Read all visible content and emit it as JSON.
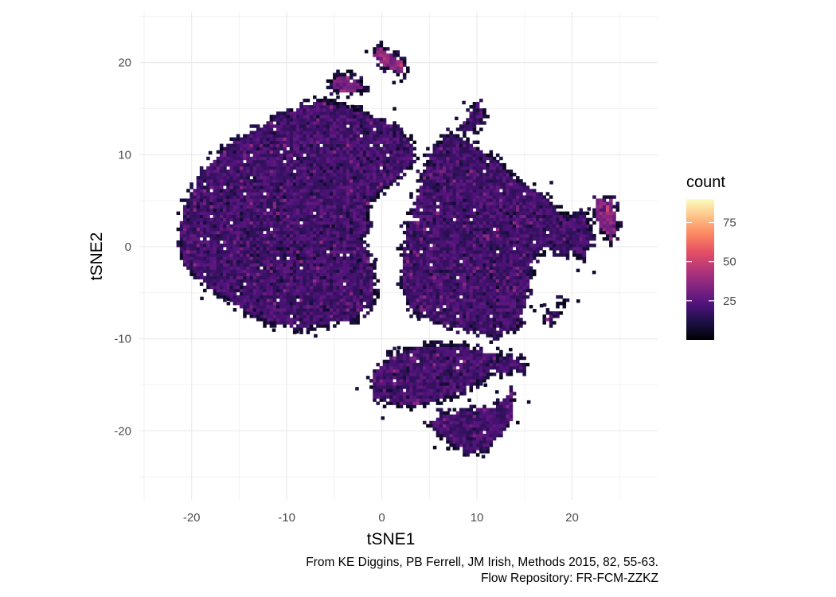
{
  "chart_data": {
    "type": "heatmap",
    "xlabel": "tSNE1",
    "ylabel": "tSNE2",
    "xlim": [
      -25.5,
      29
    ],
    "ylim": [
      -27.5,
      25.5
    ],
    "x_ticks": [
      -20,
      -10,
      0,
      10,
      20
    ],
    "y_ticks": [
      -20,
      -10,
      0,
      10,
      20
    ],
    "grid": true,
    "legend": {
      "title": "count",
      "position": "right",
      "labels": [
        25,
        50,
        75
      ],
      "range": [
        0,
        90
      ],
      "colors": [
        "#000004",
        "#1c1044",
        "#4f127b",
        "#812581",
        "#b5367a",
        "#e55064",
        "#fb8761",
        "#fec287",
        "#fcfdbf"
      ]
    },
    "clusters": [
      {
        "name": "large-left-cluster",
        "x": -9,
        "y": 3,
        "density": "medium"
      },
      {
        "name": "large-right-cluster",
        "x": 9,
        "y": 1,
        "density": "medium"
      },
      {
        "name": "lower-middle-cluster",
        "x": 5,
        "y": -14,
        "density": "medium"
      },
      {
        "name": "bottom-cluster",
        "x": 10,
        "y": -20,
        "density": "medium"
      },
      {
        "name": "small-top-cluster",
        "x": 0.5,
        "y": 20,
        "density": "high"
      },
      {
        "name": "small-upper-left-cluster",
        "x": -4,
        "y": 17.5,
        "density": "high"
      },
      {
        "name": "small-far-right-cluster",
        "x": 23.5,
        "y": 3,
        "density": "high"
      }
    ]
  },
  "caption": {
    "line1": "From KE Diggins, PB Ferrell, JM Irish, Methods 2015, 82, 55-63.",
    "line2": "Flow Repository: FR-FCM-ZZKZ"
  }
}
